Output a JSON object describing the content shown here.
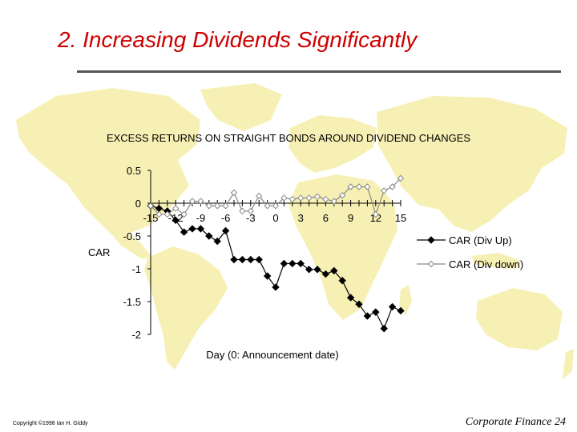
{
  "slide": {
    "title": "2. Increasing Dividends Significantly",
    "copyright": "Copyright ©1998 Ian H. Giddy",
    "footer": "Corporate Finance 24"
  },
  "chart_data": {
    "type": "line",
    "title": "EXCESS RETURNS ON STRAIGHT BONDS AROUND DIVIDEND CHANGES",
    "xlabel": "Day (0: Announcement date)",
    "ylabel": "CAR",
    "x_tick_labels": [
      "-15",
      "-12",
      "-9",
      "-6",
      "-3",
      "0",
      "3",
      "6",
      "9",
      "12",
      "15"
    ],
    "y_tick_labels": [
      "0.5",
      "0",
      "-0.5",
      "-1",
      "-1.5",
      "-2"
    ],
    "xlim": [
      -15,
      15
    ],
    "ylim": [
      -2,
      0.5
    ],
    "x": [
      -15,
      -14,
      -13,
      -12,
      -11,
      -10,
      -9,
      -8,
      -7,
      -6,
      -5,
      -4,
      -3,
      -2,
      -1,
      0,
      1,
      2,
      3,
      4,
      5,
      6,
      7,
      8,
      9,
      10,
      11,
      12,
      13,
      14,
      15
    ],
    "series": [
      {
        "name": "CAR (Div Up)",
        "color": "#000000",
        "marker": "filled-diamond",
        "values": [
          -0.04,
          -0.08,
          -0.12,
          -0.26,
          -0.44,
          -0.39,
          -0.39,
          -0.5,
          -0.58,
          -0.42,
          -0.86,
          -0.86,
          -0.86,
          -0.86,
          -1.11,
          -1.28,
          -0.92,
          -0.92,
          -0.92,
          -1.01,
          -1.01,
          -1.08,
          -1.03,
          -1.18,
          -1.44,
          -1.54,
          -1.72,
          -1.66,
          -1.91,
          -1.58,
          -1.64
        ]
      },
      {
        "name": "CAR (Div down)",
        "color": "#888888",
        "marker": "open-diamond",
        "values": [
          -0.04,
          -0.17,
          -0.17,
          -0.08,
          -0.17,
          0.03,
          0.03,
          -0.04,
          -0.04,
          -0.04,
          0.16,
          -0.12,
          -0.12,
          0.11,
          -0.04,
          -0.04,
          0.08,
          0.06,
          0.08,
          0.08,
          0.1,
          0.06,
          0.03,
          0.12,
          0.25,
          0.25,
          0.25,
          -0.17,
          0.19,
          0.25,
          0.38
        ]
      }
    ],
    "legend": "right",
    "grid": false
  }
}
